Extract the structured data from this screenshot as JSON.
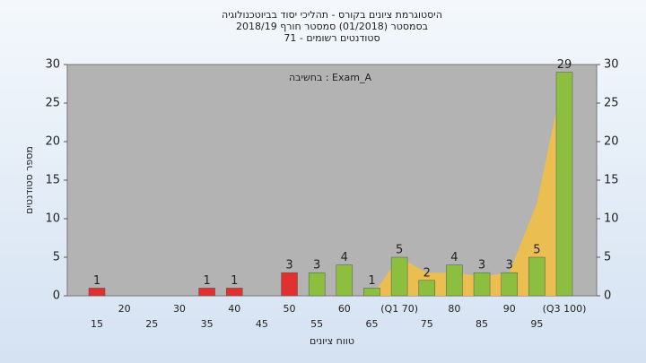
{
  "chart_data": {
    "type": "bar",
    "title": [
      "היסטוגרמת ציונים בקורס - תהליכי יסוד בביוטכנולוגיה",
      "בסמסטר (01/2018) סמסטר חורף 2018/19",
      "סטודנטים רשומים - 71"
    ],
    "annotation": "בחשיבה : Exam_A",
    "x_label": "טווח ציונים",
    "y_label": "מספר סטודנטים",
    "categories": [
      "15",
      "20",
      "25",
      "30",
      "35",
      "40",
      "45",
      "50",
      "55",
      "60",
      "65",
      "(Q1 70)",
      "75",
      "80",
      "85",
      "90",
      "95",
      "(Q3 100)"
    ],
    "values": [
      1,
      0,
      0,
      0,
      1,
      1,
      0,
      3,
      3,
      4,
      1,
      5,
      2,
      4,
      3,
      3,
      5,
      29
    ],
    "colors": [
      "#e03030",
      "#e03030",
      "#e03030",
      "#e03030",
      "#e03030",
      "#e03030",
      "#e03030",
      "#e03030",
      "#8cbf3f",
      "#8cbf3f",
      "#8cbf3f",
      "#8cbf3f",
      "#8cbf3f",
      "#8cbf3f",
      "#8cbf3f",
      "#8cbf3f",
      "#8cbf3f",
      "#8cbf3f"
    ],
    "area": {
      "color": "#f5c040",
      "values": [
        null,
        null,
        null,
        null,
        null,
        null,
        null,
        null,
        null,
        null,
        0,
        5,
        3,
        3,
        2.5,
        3,
        12,
        29
      ]
    },
    "ylim": [
      0,
      30
    ],
    "yticks": [
      0,
      5,
      10,
      15,
      20,
      25,
      30
    ],
    "y2lim": [
      0,
      30
    ],
    "y2ticks": [
      0,
      5,
      10,
      15,
      20,
      25,
      30
    ]
  }
}
